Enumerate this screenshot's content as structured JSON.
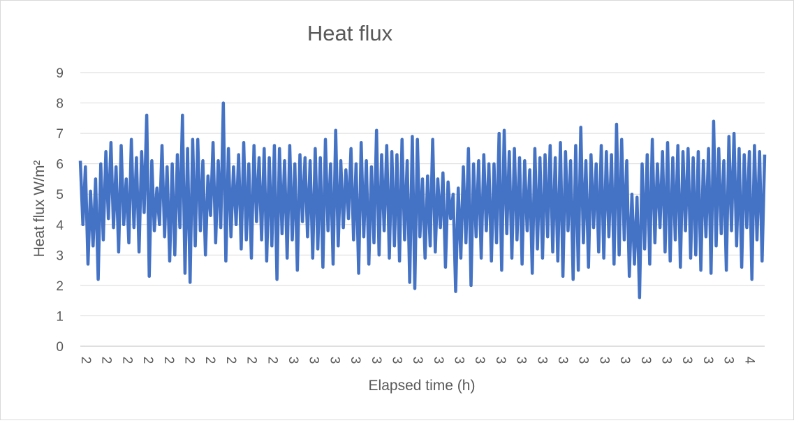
{
  "chart_data": {
    "type": "line",
    "title": "Heat flux",
    "xlabel": "Elapsed time (h)",
    "ylabel": "Heat flux W/m²",
    "ylim": [
      0,
      9
    ],
    "y_ticks": [
      0,
      1,
      2,
      3,
      4,
      5,
      6,
      7,
      8,
      9
    ],
    "x_tick_labels": [
      "2",
      "2",
      "2",
      "2",
      "2",
      "2",
      "2",
      "2",
      "2",
      "2",
      "3",
      "3",
      "3",
      "3",
      "3",
      "3",
      "3",
      "3",
      "3",
      "3",
      "3",
      "3",
      "3",
      "3",
      "3",
      "3",
      "3",
      "3",
      "3",
      "3",
      "3",
      "3",
      "4"
    ],
    "grid": true,
    "legend": "none",
    "series": [
      {
        "color": "#4472c4",
        "values": [
          6.1,
          4.0,
          5.9,
          2.7,
          5.1,
          3.3,
          5.5,
          2.2,
          6.0,
          3.5,
          6.4,
          4.2,
          6.7,
          3.9,
          5.9,
          3.1,
          6.6,
          4.0,
          5.5,
          3.4,
          6.8,
          3.9,
          6.2,
          3.1,
          6.4,
          4.4,
          7.6,
          2.3,
          6.1,
          3.8,
          5.2,
          4.0,
          6.6,
          3.6,
          5.9,
          2.8,
          6.0,
          3.0,
          6.3,
          3.9,
          7.6,
          2.4,
          6.5,
          2.1,
          6.8,
          3.3,
          6.8,
          3.8,
          6.1,
          3.0,
          5.6,
          4.3,
          6.7,
          3.4,
          6.1,
          3.9,
          8.0,
          2.8,
          6.5,
          3.6,
          5.9,
          4.0,
          6.3,
          3.2,
          6.7,
          3.5,
          6.0,
          2.9,
          6.6,
          4.1,
          6.2,
          3.5,
          6.5,
          2.8,
          6.2,
          3.3,
          6.6,
          2.2,
          6.5,
          3.7,
          6.1,
          2.9,
          6.6,
          3.5,
          6.0,
          2.5,
          6.3,
          4.1,
          6.2,
          3.6,
          6.1,
          2.9,
          6.5,
          3.2,
          6.2,
          2.6,
          6.8,
          3.8,
          6.0,
          2.7,
          7.1,
          3.3,
          6.1,
          3.9,
          5.8,
          4.2,
          6.5,
          3.5,
          6.0,
          2.4,
          6.7,
          3.6,
          6.1,
          2.7,
          5.9,
          3.4,
          7.1,
          3.0,
          6.3,
          3.8,
          6.6,
          2.9,
          6.4,
          3.3,
          6.3,
          2.8,
          6.8,
          3.5,
          6.1,
          2.1,
          6.9,
          1.9,
          6.8,
          3.6,
          5.5,
          2.9,
          5.6,
          3.3,
          6.8,
          3.1,
          5.5,
          3.9,
          5.7,
          2.6,
          5.4,
          4.2,
          5.0,
          1.8,
          5.2,
          2.9,
          5.9,
          3.4,
          6.5,
          2.0,
          6.0,
          3.6,
          6.1,
          2.9,
          6.3,
          3.8,
          6.0,
          2.8,
          6.0,
          3.4,
          7.0,
          2.5,
          7.1,
          3.7,
          6.4,
          2.9,
          6.5,
          3.5,
          6.2,
          2.7,
          6.1,
          3.8,
          5.8,
          2.4,
          6.5,
          3.2,
          6.2,
          2.9,
          6.3,
          3.6,
          6.6,
          3.1,
          6.2,
          2.8,
          6.7,
          2.3,
          6.4,
          3.8,
          6.1,
          2.2,
          6.6,
          2.5,
          7.2,
          3.4,
          6.1,
          2.6,
          6.3,
          3.9,
          6.0,
          3.1,
          6.6,
          2.9,
          6.4,
          3.6,
          6.3,
          2.7,
          7.3,
          3.0,
          6.8,
          3.5,
          6.1,
          2.3,
          5.0,
          2.7,
          4.9,
          1.6,
          6.0,
          3.2,
          6.3,
          2.7,
          6.8,
          3.4,
          6.0,
          3.9,
          6.4,
          3.1,
          6.7,
          2.8,
          6.2,
          3.5,
          6.6,
          2.6,
          6.4,
          3.8,
          6.5,
          2.9,
          6.2,
          3.0,
          6.4,
          2.5,
          6.1,
          3.6,
          6.5,
          2.4,
          7.4,
          3.3,
          6.5,
          3.7,
          6.1,
          2.5,
          6.9,
          3.8,
          7.0,
          3.3,
          6.5,
          2.6,
          6.3,
          3.9,
          6.4,
          2.2,
          6.6,
          3.5,
          6.4,
          2.8,
          6.3
        ]
      }
    ]
  }
}
